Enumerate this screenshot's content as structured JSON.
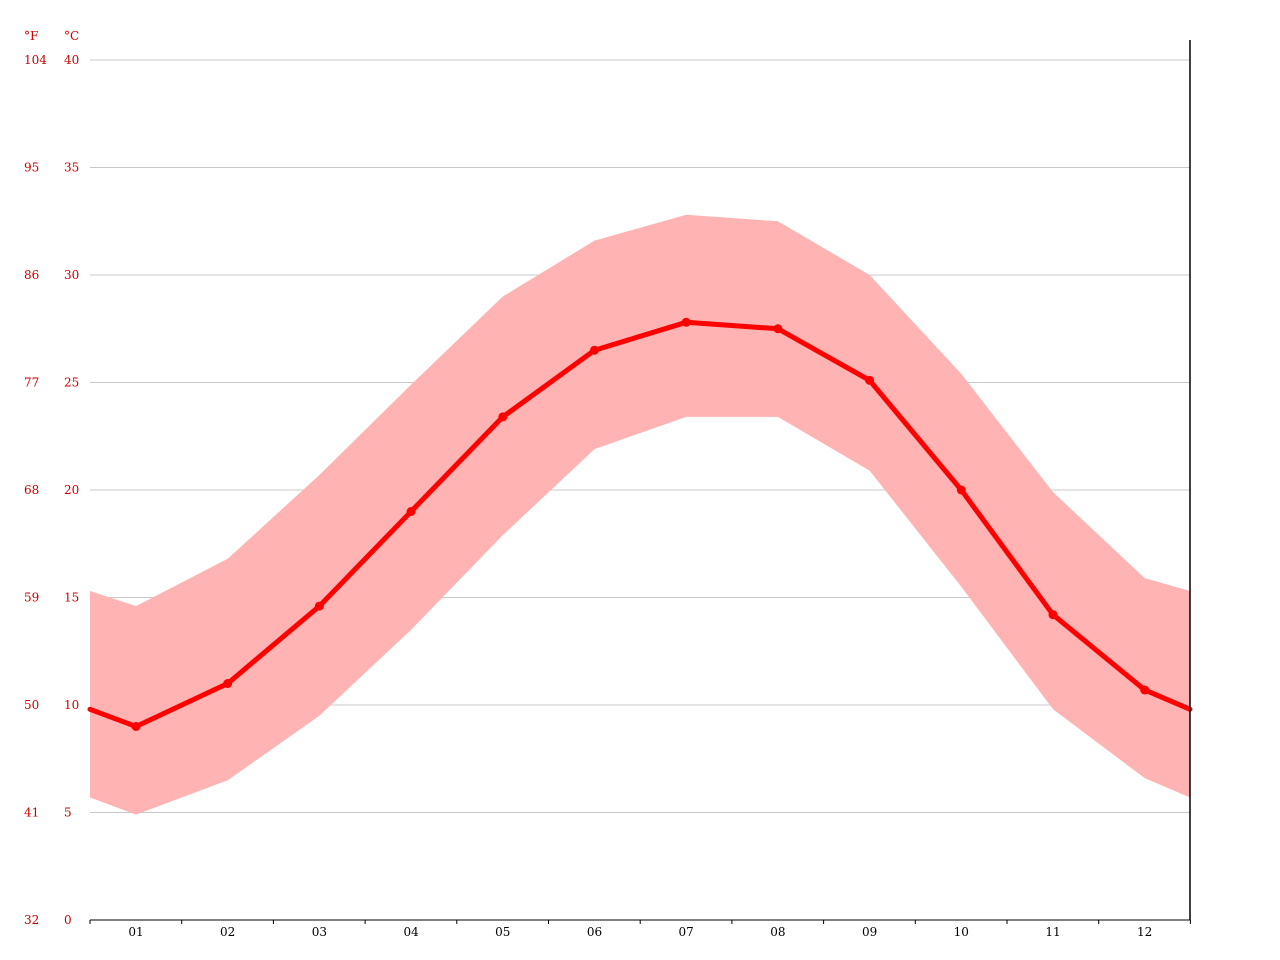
{
  "chart_data": {
    "type": "area",
    "axis_units": {
      "fahrenheit": "°F",
      "celsius": "°C"
    },
    "x_tick_labels": [
      "01",
      "02",
      "03",
      "04",
      "05",
      "06",
      "07",
      "08",
      "09",
      "10",
      "11",
      "12"
    ],
    "y_ticks_celsius": [
      "0",
      "5",
      "10",
      "15",
      "20",
      "25",
      "30",
      "35",
      "40"
    ],
    "y_ticks_fahrenheit": [
      "32",
      "41",
      "50",
      "59",
      "68",
      "77",
      "86",
      "95",
      "104"
    ],
    "ylim": [
      0,
      40
    ],
    "grid": true,
    "series": [
      {
        "values": [
          9.0,
          11.0,
          14.6,
          19.0,
          23.4,
          26.5,
          27.8,
          27.5,
          25.1,
          20.0,
          14.2,
          10.7
        ],
        "color": "#ff0000"
      },
      {
        "role": "band-max",
        "values": [
          14.6,
          16.8,
          20.7,
          24.9,
          29.0,
          31.6,
          32.8,
          32.5,
          30.0,
          25.4,
          19.9,
          15.9
        ],
        "color": "#ffb3b3"
      },
      {
        "role": "band-min",
        "values": [
          4.9,
          6.5,
          9.5,
          13.5,
          17.9,
          21.9,
          23.4,
          23.4,
          20.9,
          15.5,
          9.8,
          6.6
        ],
        "color": "#ffb3b3"
      }
    ],
    "wrap_edge_values": {
      "mean": 9.8,
      "max": 15.3,
      "min": 5.7
    },
    "colors": {
      "line": "#ff0000",
      "band": "#ffb3b3",
      "grid": "#c8c8c8",
      "axis_labels": "#cc0000",
      "x_labels": "#000000",
      "axis": "#000000"
    }
  }
}
